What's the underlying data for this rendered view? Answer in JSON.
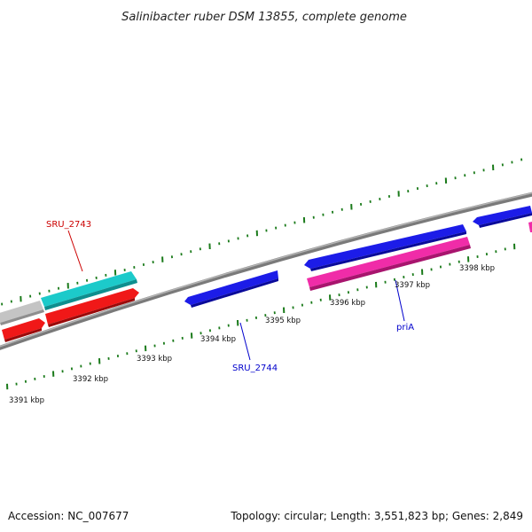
{
  "title": "Salinibacter ruber DSM 13855, complete genome",
  "footer": {
    "accession": "Accession: NC_007677",
    "summary": "Topology: circular; Length: 3,551,823 bp; Genes: 2,849"
  },
  "tick_labels": [
    "3391 kbp",
    "3392 kbp",
    "3393 kbp",
    "3394 kbp",
    "3395 kbp",
    "3396 kbp",
    "3397 kbp",
    "3398 kbp"
  ],
  "gene_labels": {
    "sru_2743": "SRU_2743",
    "sru_2744": "SRU_2744",
    "pria": "priA"
  },
  "colors": {
    "ticks": "#1a7a1a",
    "backbone": "#888888",
    "label_red": "#cc0000",
    "label_blue": "#0000cc",
    "gene_blue": "#1a1ae6",
    "gene_red": "#ee1111",
    "gene_cyan": "#1ac8c8",
    "gene_gray": "#c0c0c0",
    "gene_pink": "#ee2ca0"
  }
}
